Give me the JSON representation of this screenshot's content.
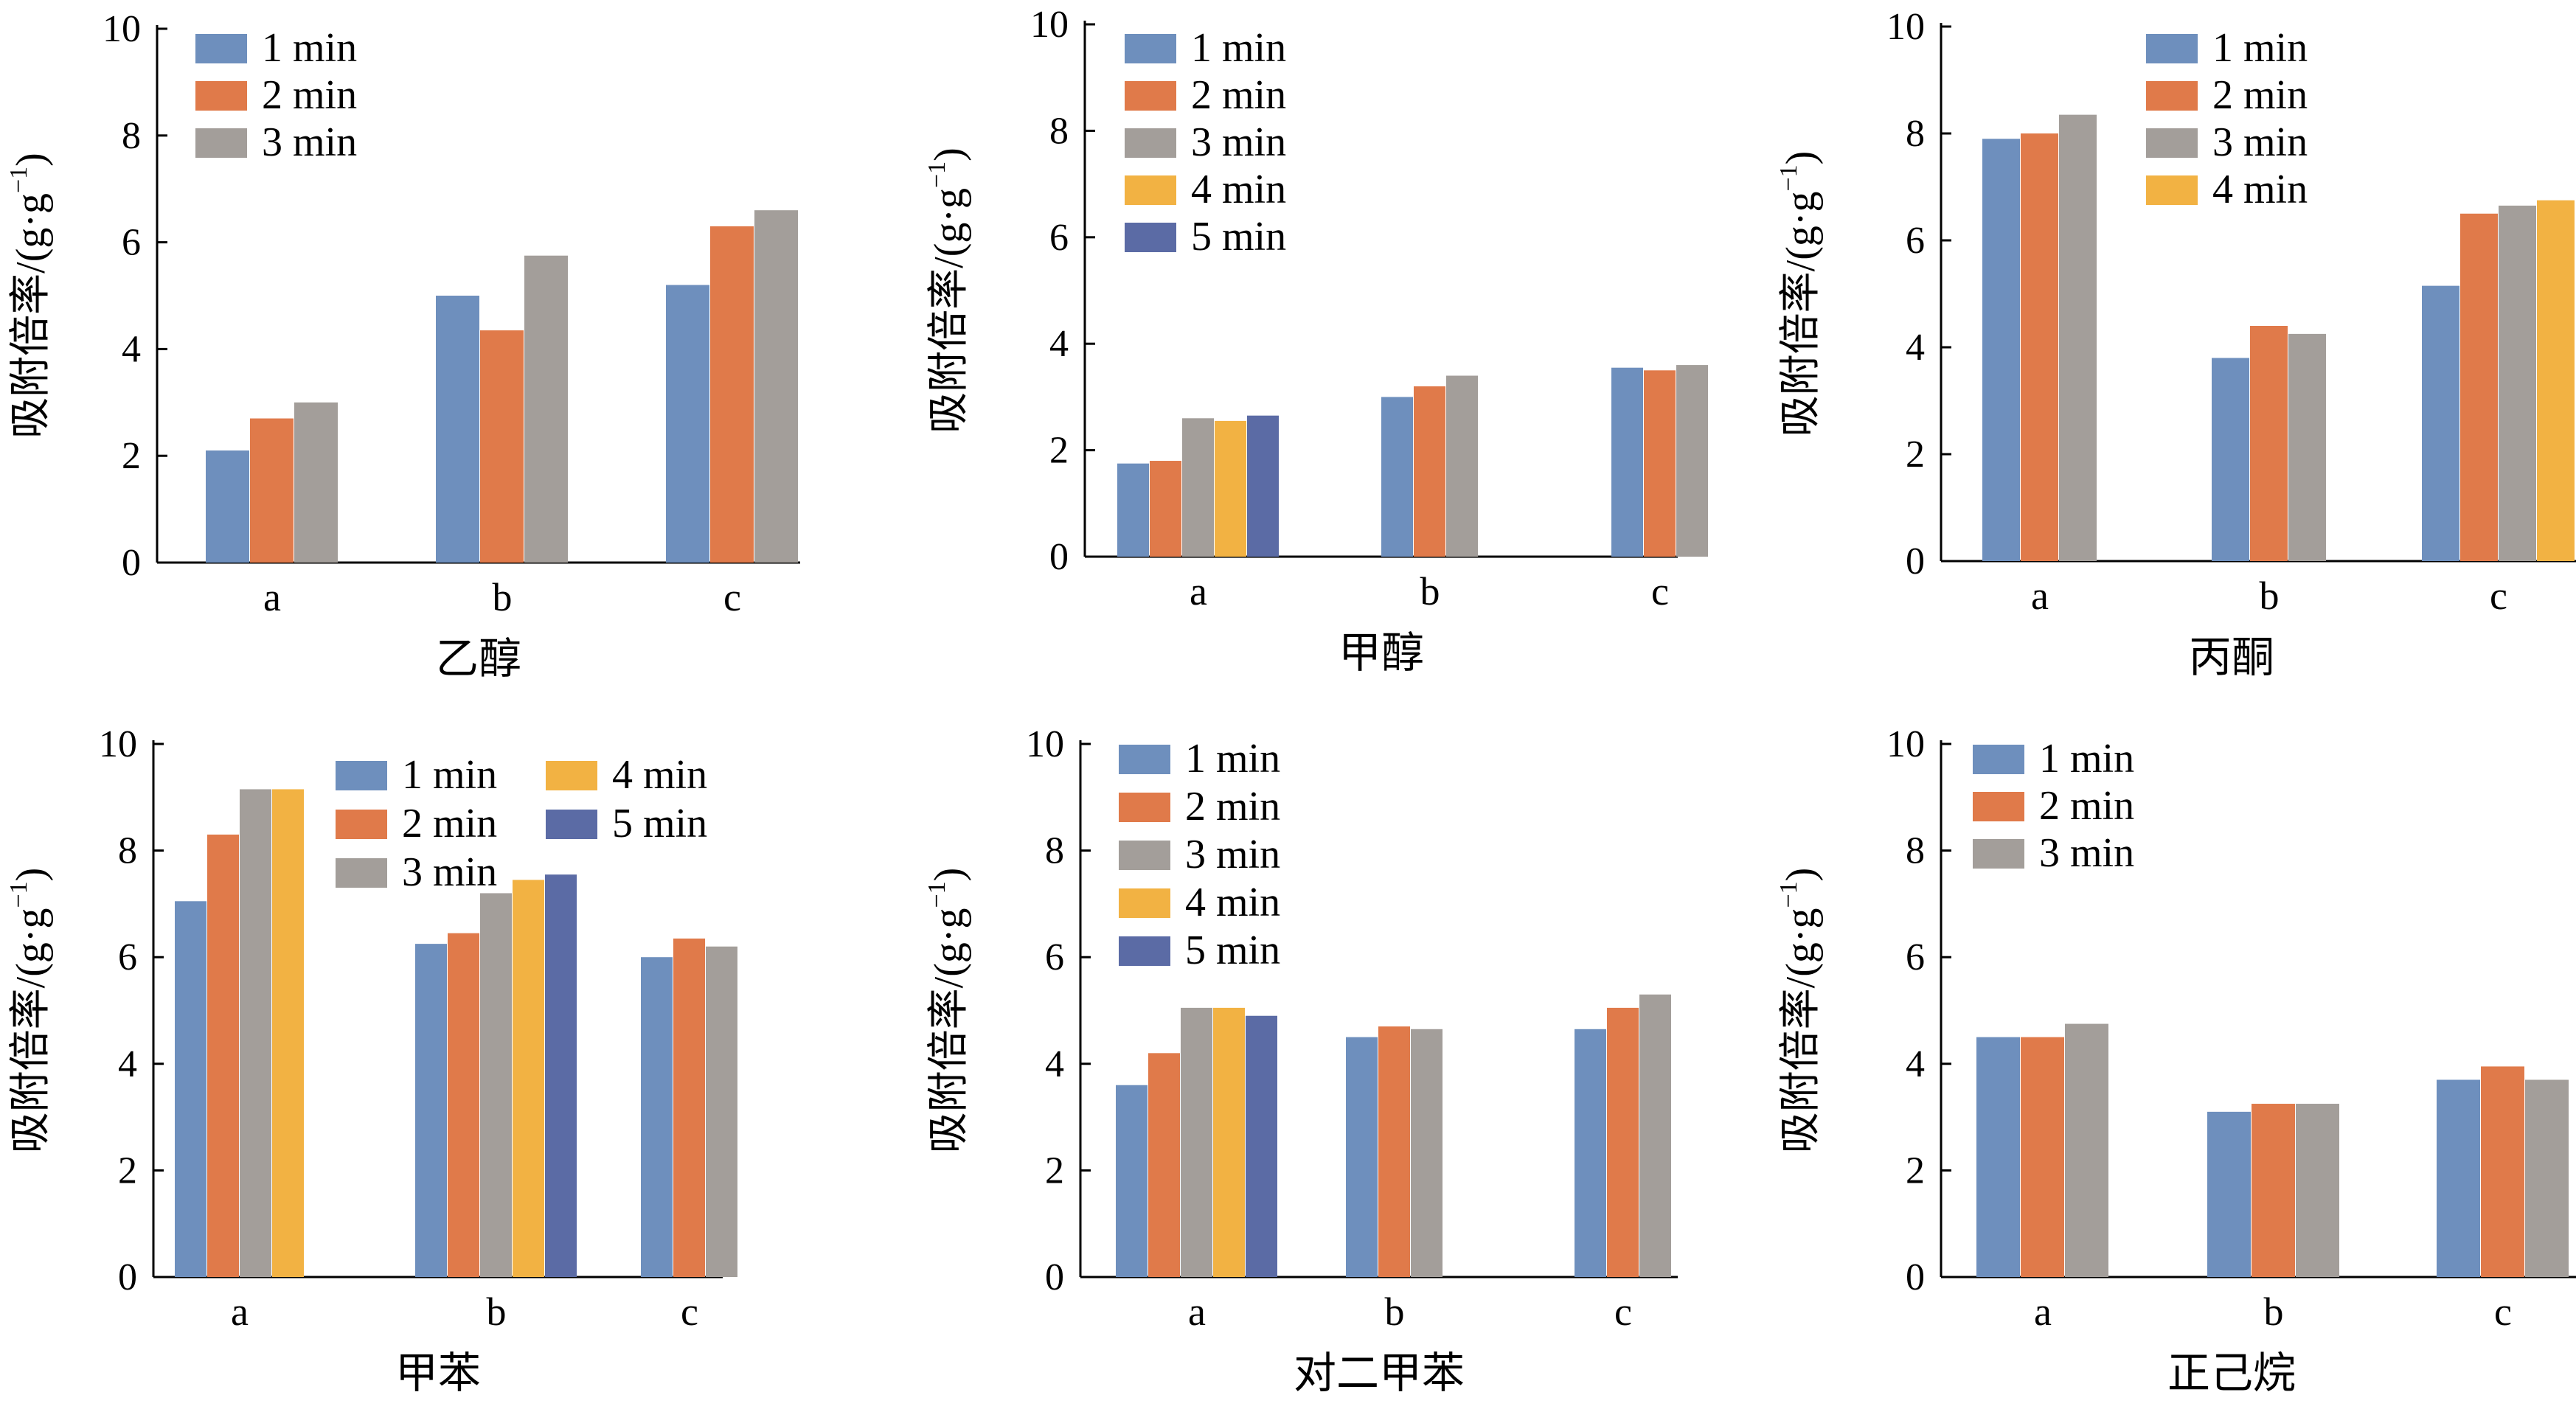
{
  "figure": {
    "series_colors": {
      "1 min": "#6E8FBD",
      "2 min": "#E07A4A",
      "3 min": "#A39E9A",
      "4 min": "#F2B243",
      "5 min": "#5B6BA5"
    },
    "ylabel_main": "吸附倍率/(g·g",
    "ylabel_sup": "−1",
    "ylabel_close": ")"
  },
  "chart_data": [
    {
      "type": "bar",
      "title": "乙醇",
      "ylabel": "吸附倍率/(g·g⁻¹)",
      "categories": [
        "a",
        "b",
        "c"
      ],
      "ylim": [
        0,
        10
      ],
      "yticks": [
        0,
        2,
        4,
        6,
        8,
        10
      ],
      "legend_position": "top-left",
      "series": [
        {
          "name": "1 min",
          "values": [
            2.1,
            5.0,
            5.2
          ]
        },
        {
          "name": "2 min",
          "values": [
            2.7,
            4.35,
            6.3
          ]
        },
        {
          "name": "3 min",
          "values": [
            3.0,
            5.75,
            6.6
          ]
        }
      ]
    },
    {
      "type": "bar",
      "title": "甲醇",
      "ylabel": "吸附倍率/(g·g⁻¹)",
      "categories": [
        "a",
        "b",
        "c"
      ],
      "ylim": [
        0,
        10
      ],
      "yticks": [
        0,
        2,
        4,
        6,
        8,
        10
      ],
      "legend_position": "top-left",
      "series": [
        {
          "name": "1 min",
          "values": [
            1.75,
            3.0,
            3.55
          ]
        },
        {
          "name": "2 min",
          "values": [
            1.8,
            3.2,
            3.5
          ]
        },
        {
          "name": "3 min",
          "values": [
            2.6,
            3.4,
            3.6
          ]
        },
        {
          "name": "4 min",
          "values": [
            2.55,
            null,
            null
          ]
        },
        {
          "name": "5 min",
          "values": [
            2.65,
            null,
            null
          ]
        }
      ]
    },
    {
      "type": "bar",
      "title": "丙酮",
      "ylabel": "吸附倍率/(g·g⁻¹)",
      "categories": [
        "a",
        "b",
        "c"
      ],
      "ylim": [
        0,
        10
      ],
      "yticks": [
        0,
        2,
        4,
        6,
        8,
        10
      ],
      "legend_position": "top-right",
      "series": [
        {
          "name": "1 min",
          "values": [
            7.9,
            3.8,
            5.15
          ]
        },
        {
          "name": "2 min",
          "values": [
            8.0,
            4.4,
            6.5
          ]
        },
        {
          "name": "3 min",
          "values": [
            8.35,
            4.25,
            6.65
          ]
        },
        {
          "name": "4 min",
          "values": [
            null,
            null,
            6.75
          ]
        }
      ]
    },
    {
      "type": "bar",
      "title": "甲苯",
      "ylabel": "吸附倍率/(g·g⁻¹)",
      "categories": [
        "a",
        "b",
        "c"
      ],
      "ylim": [
        0,
        10
      ],
      "yticks": [
        0,
        2,
        4,
        6,
        8,
        10
      ],
      "legend_position": "top-right",
      "series": [
        {
          "name": "1 min",
          "values": [
            7.05,
            6.25,
            6.0
          ]
        },
        {
          "name": "2 min",
          "values": [
            8.3,
            6.45,
            6.35
          ]
        },
        {
          "name": "3 min",
          "values": [
            9.15,
            7.2,
            6.2
          ]
        },
        {
          "name": "4 min",
          "values": [
            9.15,
            7.45,
            null
          ]
        },
        {
          "name": "5 min",
          "values": [
            null,
            7.55,
            null
          ]
        }
      ]
    },
    {
      "type": "bar",
      "title": "对二甲苯",
      "ylabel": "吸附倍率/(g·g⁻¹)",
      "categories": [
        "a",
        "b",
        "c"
      ],
      "ylim": [
        0,
        10
      ],
      "yticks": [
        0,
        2,
        4,
        6,
        8,
        10
      ],
      "legend_position": "top-left",
      "series": [
        {
          "name": "1 min",
          "values": [
            3.6,
            4.5,
            4.65
          ]
        },
        {
          "name": "2 min",
          "values": [
            4.2,
            4.7,
            5.05
          ]
        },
        {
          "name": "3 min",
          "values": [
            5.05,
            4.65,
            5.3
          ]
        },
        {
          "name": "4 min",
          "values": [
            5.05,
            null,
            null
          ]
        },
        {
          "name": "5 min",
          "values": [
            4.9,
            null,
            null
          ]
        }
      ]
    },
    {
      "type": "bar",
      "title": "正己烷",
      "ylabel": "吸附倍率/(g·g⁻¹)",
      "categories": [
        "a",
        "b",
        "c"
      ],
      "ylim": [
        0,
        10
      ],
      "yticks": [
        0,
        2,
        4,
        6,
        8,
        10
      ],
      "legend_position": "top-left",
      "series": [
        {
          "name": "1 min",
          "values": [
            4.5,
            3.1,
            3.7
          ]
        },
        {
          "name": "2 min",
          "values": [
            4.5,
            3.25,
            3.95
          ]
        },
        {
          "name": "3 min",
          "values": [
            4.75,
            3.25,
            3.7
          ]
        }
      ]
    }
  ]
}
